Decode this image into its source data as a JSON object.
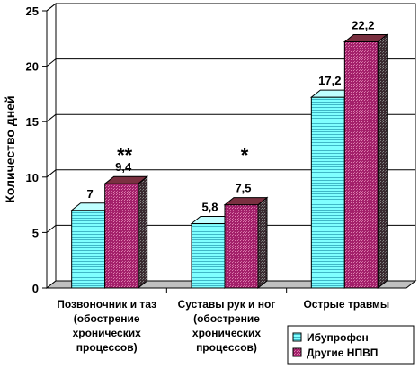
{
  "chart_data": {
    "type": "bar",
    "ylabel": "Количество дней",
    "ylim": [
      0,
      25
    ],
    "yticks": [
      0,
      5,
      10,
      15,
      20,
      25
    ],
    "grid": true,
    "categories": [
      [
        "Позвоночник и таз",
        "(обострение",
        "хронических",
        "процессов)"
      ],
      [
        "Суставы рук и ног",
        "(обострение",
        "хронических",
        "процессов)"
      ],
      [
        "Острые травмы"
      ]
    ],
    "series": [
      {
        "name": "Ибупрофен",
        "values": [
          7,
          5.8,
          17.2
        ],
        "labels": [
          "7",
          "5,8",
          "17,2"
        ],
        "color": "#7fffff"
      },
      {
        "name": "Другие НПВП",
        "values": [
          9.4,
          7.5,
          22.2
        ],
        "labels": [
          "9,4",
          "7,5",
          "22,2"
        ],
        "color": "#9e1f63"
      }
    ],
    "annotations": [
      {
        "text": "**",
        "category": 0
      },
      {
        "text": "*",
        "category": 1
      }
    ],
    "legend": "bottom-right"
  }
}
